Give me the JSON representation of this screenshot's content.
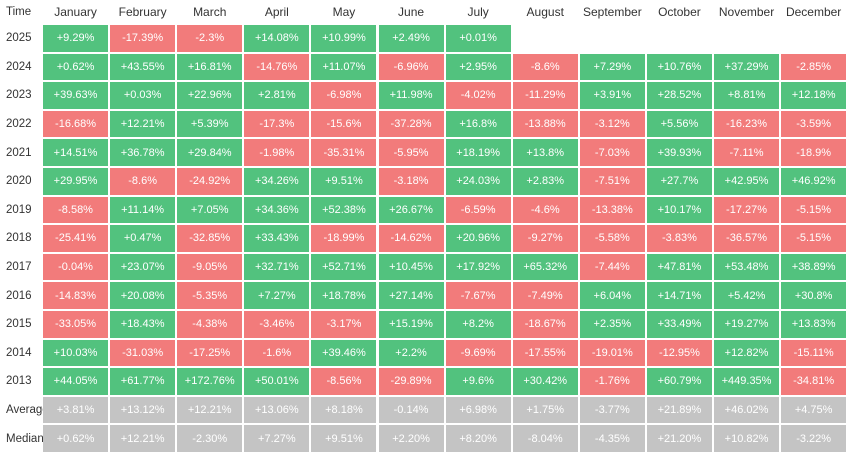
{
  "table": {
    "header": [
      "Time",
      "January",
      "February",
      "March",
      "April",
      "May",
      "June",
      "July",
      "August",
      "September",
      "October",
      "November",
      "December"
    ],
    "rows": [
      [
        "2025",
        "+9.29%",
        "-17.39%",
        "-2.3%",
        "+14.08%",
        "+10.99%",
        "+2.49%",
        "+0.01%"
      ],
      [
        "2024",
        "+0.62%",
        "+43.55%",
        "+16.81%",
        "-14.76%",
        "+11.07%",
        "-6.96%",
        "+2.95%",
        "-8.6%",
        "+7.29%",
        "+10.76%",
        "+37.29%",
        "-2.85%"
      ],
      [
        "2023",
        "+39.63%",
        "+0.03%",
        "+22.96%",
        "+2.81%",
        "-6.98%",
        "+11.98%",
        "-4.02%",
        "-11.29%",
        "+3.91%",
        "+28.52%",
        "+8.81%",
        "+12.18%"
      ],
      [
        "2022",
        "-16.68%",
        "+12.21%",
        "+5.39%",
        "-17.3%",
        "-15.6%",
        "-37.28%",
        "+16.8%",
        "-13.88%",
        "-3.12%",
        "+5.56%",
        "-16.23%",
        "-3.59%"
      ],
      [
        "2021",
        "+14.51%",
        "+36.78%",
        "+29.84%",
        "-1.98%",
        "-35.31%",
        "-5.95%",
        "+18.19%",
        "+13.8%",
        "-7.03%",
        "+39.93%",
        "-7.11%",
        "-18.9%"
      ],
      [
        "2020",
        "+29.95%",
        "-8.6%",
        "-24.92%",
        "+34.26%",
        "+9.51%",
        "-3.18%",
        "+24.03%",
        "+2.83%",
        "-7.51%",
        "+27.7%",
        "+42.95%",
        "+46.92%"
      ],
      [
        "2019",
        "-8.58%",
        "+11.14%",
        "+7.05%",
        "+34.36%",
        "+52.38%",
        "+26.67%",
        "-6.59%",
        "-4.6%",
        "-13.38%",
        "+10.17%",
        "-17.27%",
        "-5.15%"
      ],
      [
        "2018",
        "-25.41%",
        "+0.47%",
        "-32.85%",
        "+33.43%",
        "-18.99%",
        "-14.62%",
        "+20.96%",
        "-9.27%",
        "-5.58%",
        "-3.83%",
        "-36.57%",
        "-5.15%"
      ],
      [
        "2017",
        "-0.04%",
        "+23.07%",
        "-9.05%",
        "+32.71%",
        "+52.71%",
        "+10.45%",
        "+17.92%",
        "+65.32%",
        "-7.44%",
        "+47.81%",
        "+53.48%",
        "+38.89%"
      ],
      [
        "2016",
        "-14.83%",
        "+20.08%",
        "-5.35%",
        "+7.27%",
        "+18.78%",
        "+27.14%",
        "-7.67%",
        "-7.49%",
        "+6.04%",
        "+14.71%",
        "+5.42%",
        "+30.8%"
      ],
      [
        "2015",
        "-33.05%",
        "+18.43%",
        "-4.38%",
        "-3.46%",
        "-3.17%",
        "+15.19%",
        "+8.2%",
        "-18.67%",
        "+2.35%",
        "+33.49%",
        "+19.27%",
        "+13.83%"
      ],
      [
        "2014",
        "+10.03%",
        "-31.03%",
        "-17.25%",
        "-1.6%",
        "+39.46%",
        "+2.2%",
        "-9.69%",
        "-17.55%",
        "-19.01%",
        "-12.95%",
        "+12.82%",
        "-15.11%"
      ],
      [
        "2013",
        "+44.05%",
        "+61.77%",
        "+172.76%",
        "+50.01%",
        "-8.56%",
        "-29.89%",
        "+9.6%",
        "+30.42%",
        "-1.76%",
        "+60.79%",
        "+449.35%",
        "-34.81%"
      ],
      [
        "Average",
        "+3.81%",
        "+13.12%",
        "+12.21%",
        "+13.06%",
        "+8.18%",
        "-0.14%",
        "+6.98%",
        "+1.75%",
        "-3.77%",
        "+21.89%",
        "+46.02%",
        "+4.75%"
      ],
      [
        "Median",
        "+0.62%",
        "+12.21%",
        "-2.30%",
        "+7.27%",
        "+9.51%",
        "+2.20%",
        "+8.20%",
        "-8.04%",
        "-4.35%",
        "+21.20%",
        "+10.82%",
        "-3.22%"
      ]
    ]
  }
}
